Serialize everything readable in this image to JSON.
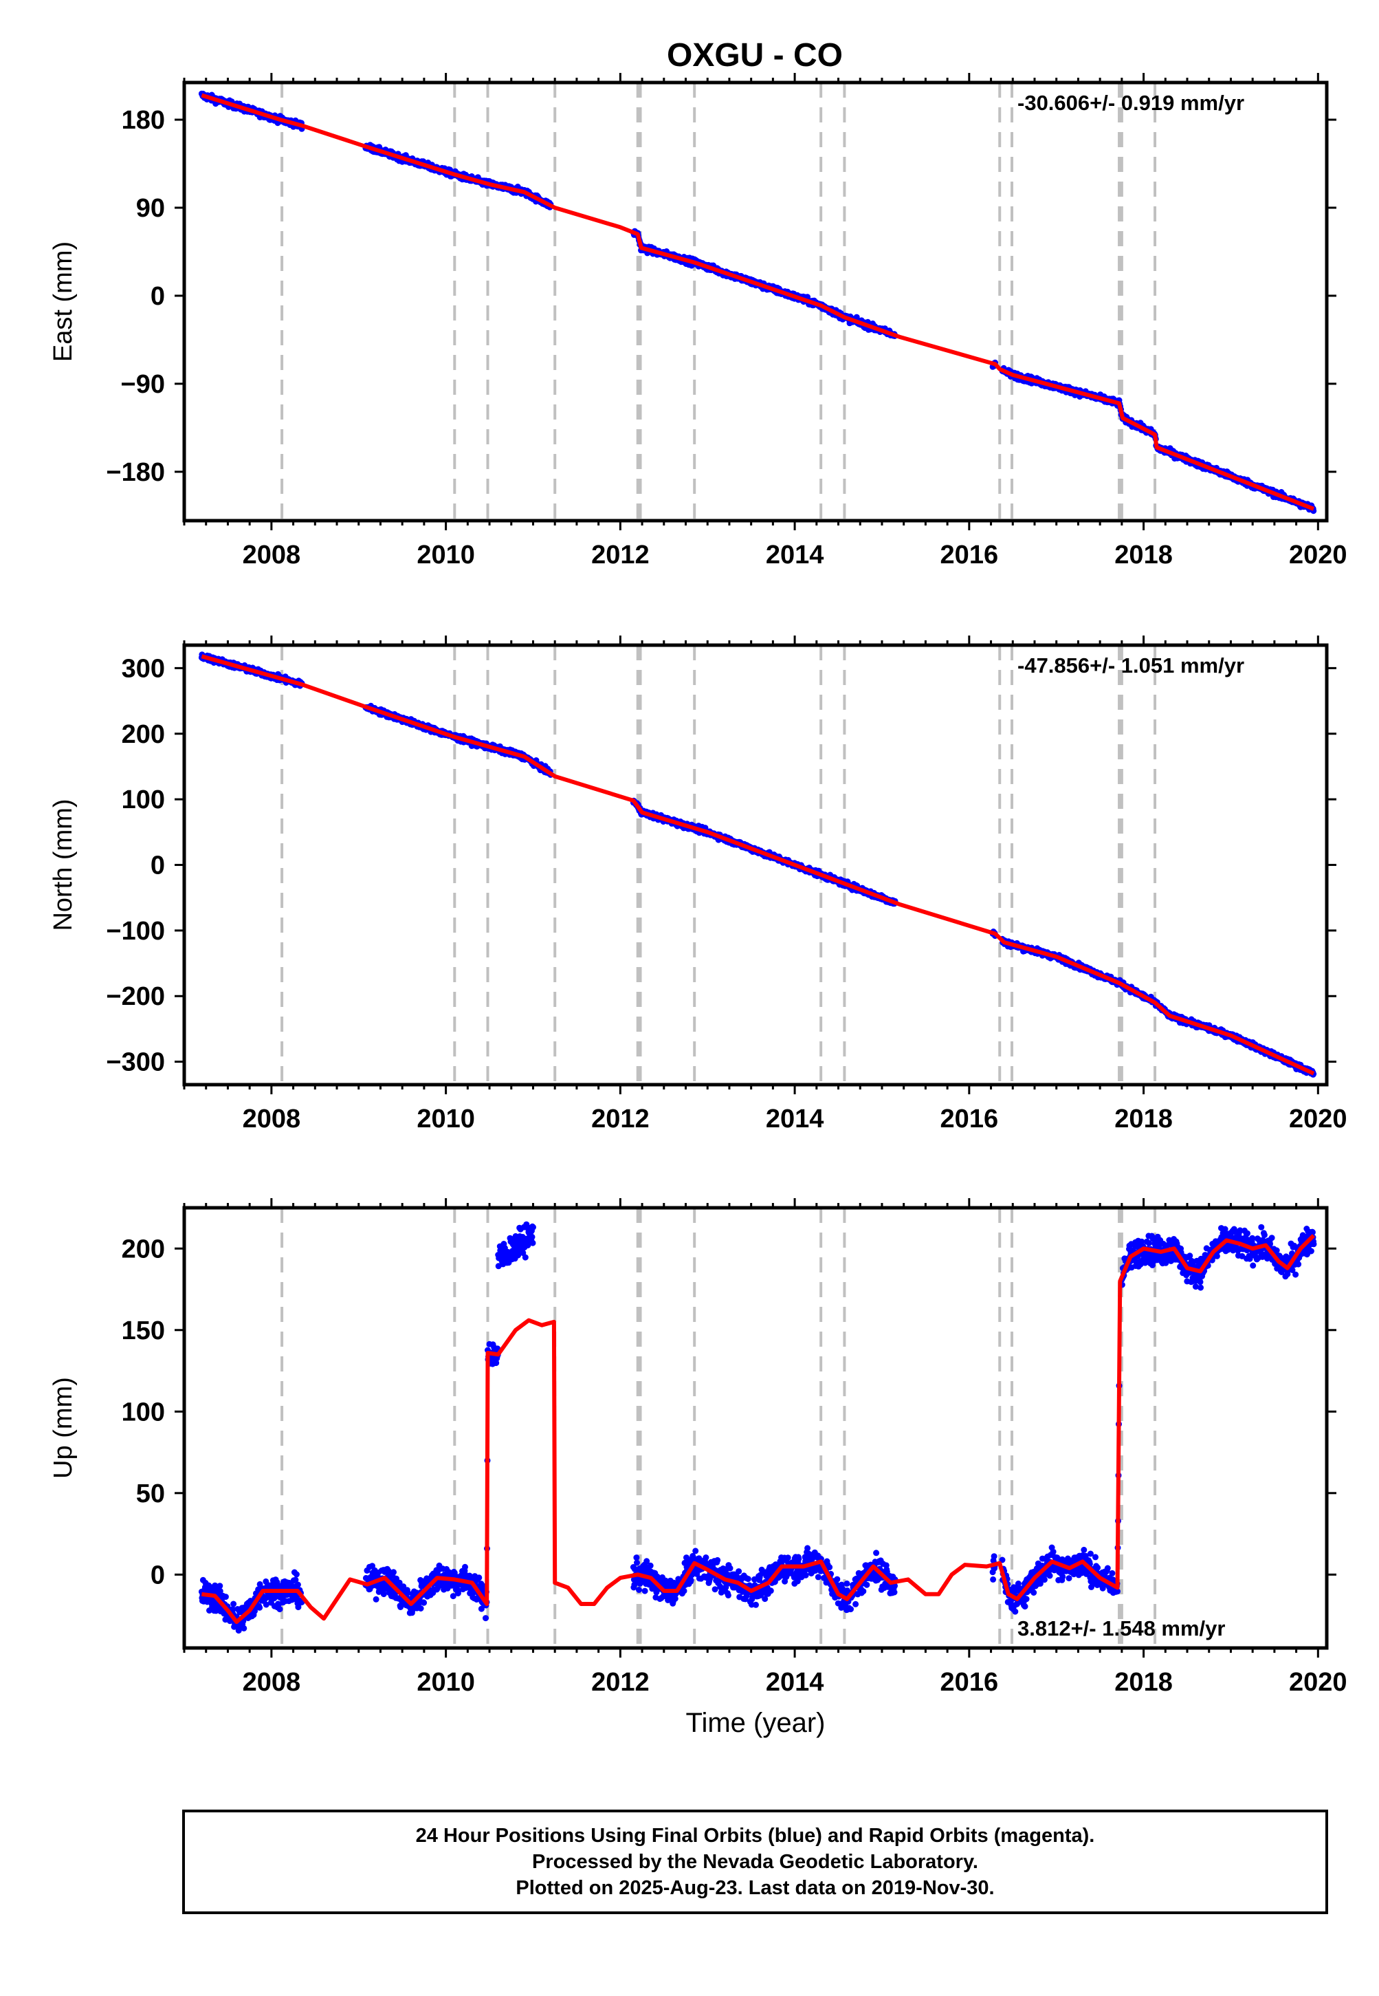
{
  "title": "OXGU - CO",
  "colors": {
    "points": "#0000ff",
    "model": "#ff0000",
    "events": "#c0c0c0"
  },
  "event_years": [
    2008.12,
    2010.1,
    2010.48,
    2011.25,
    2012.2,
    2012.23,
    2012.85,
    2014.3,
    2014.57,
    2016.35,
    2016.49,
    2017.72,
    2017.75,
    2018.13
  ],
  "chart_data": [
    {
      "type": "scatter",
      "name": "east",
      "ylabel": "East (mm)",
      "xlim": [
        2007.0,
        2020.1
      ],
      "ylim": [
        -230,
        218
      ],
      "yticks": [
        -180,
        -90,
        0,
        90,
        180
      ],
      "ytick_labels": [
        "−180",
        "−90",
        "0",
        "90",
        "180"
      ],
      "xticks": [
        2008,
        2010,
        2012,
        2014,
        2016,
        2018,
        2020
      ],
      "xtick_labels": [
        "2008",
        "2010",
        "2012",
        "2014",
        "2016",
        "2018",
        "2020"
      ],
      "rate": "-30.606+/- 0.919 mm/yr",
      "rate_position": "top-right",
      "noise": 3,
      "data_segments": [
        [
          2007.2,
          2008.35
        ],
        [
          2009.08,
          2011.2
        ],
        [
          2012.15,
          2015.15
        ],
        [
          2016.27,
          2016.3
        ],
        [
          2016.38,
          2019.95
        ]
      ],
      "model": [
        [
          2007.2,
          205
        ],
        [
          2008.1,
          180
        ],
        [
          2008.35,
          174
        ],
        [
          2009.1,
          152
        ],
        [
          2010.1,
          124
        ],
        [
          2010.5,
          114
        ],
        [
          2010.9,
          106
        ],
        [
          2011.25,
          90
        ],
        [
          2012.0,
          70
        ],
        [
          2012.2,
          63
        ],
        [
          2012.24,
          49
        ],
        [
          2012.85,
          34
        ],
        [
          2014.3,
          -10
        ],
        [
          2014.57,
          -22
        ],
        [
          2015.2,
          -42
        ],
        [
          2016.3,
          -70
        ],
        [
          2016.35,
          -75
        ],
        [
          2016.5,
          -81
        ],
        [
          2017.72,
          -110
        ],
        [
          2017.76,
          -125
        ],
        [
          2018.13,
          -142
        ],
        [
          2018.15,
          -155
        ],
        [
          2019.95,
          -218
        ]
      ]
    },
    {
      "type": "scatter",
      "name": "north",
      "ylabel": "North (mm)",
      "xlim": [
        2007.0,
        2020.1
      ],
      "ylim": [
        -335,
        335
      ],
      "yticks": [
        -300,
        -200,
        -100,
        0,
        100,
        200,
        300
      ],
      "ytick_labels": [
        "−300",
        "−200",
        "−100",
        "0",
        "100",
        "200",
        "300"
      ],
      "xticks": [
        2008,
        2010,
        2012,
        2014,
        2016,
        2018,
        2020
      ],
      "xtick_labels": [
        "2008",
        "2010",
        "2012",
        "2014",
        "2016",
        "2018",
        "2020"
      ],
      "rate": "-47.856+/- 1.051 mm/yr",
      "rate_position": "top-right",
      "noise": 4,
      "data_segments": [
        [
          2007.2,
          2008.35
        ],
        [
          2009.08,
          2011.2
        ],
        [
          2012.15,
          2015.15
        ],
        [
          2016.27,
          2016.3
        ],
        [
          2016.38,
          2019.95
        ]
      ],
      "model": [
        [
          2007.2,
          318
        ],
        [
          2008.35,
          275
        ],
        [
          2009.1,
          240
        ],
        [
          2010.1,
          195
        ],
        [
          2010.9,
          165
        ],
        [
          2011.25,
          135
        ],
        [
          2012.15,
          98
        ],
        [
          2012.25,
          80
        ],
        [
          2013.0,
          50
        ],
        [
          2014.0,
          0
        ],
        [
          2015.2,
          -60
        ],
        [
          2016.3,
          -105
        ],
        [
          2016.4,
          -118
        ],
        [
          2017.0,
          -140
        ],
        [
          2017.72,
          -180
        ],
        [
          2018.13,
          -210
        ],
        [
          2018.3,
          -230
        ],
        [
          2019.0,
          -260
        ],
        [
          2019.95,
          -318
        ]
      ]
    },
    {
      "type": "scatter",
      "name": "up",
      "ylabel": "Up (mm)",
      "xlabel": "Time (year)",
      "xlim": [
        2007.0,
        2020.1
      ],
      "ylim": [
        -45,
        225
      ],
      "yticks": [
        0,
        50,
        100,
        150,
        200
      ],
      "ytick_labels": [
        "0",
        "50",
        "100",
        "150",
        "200"
      ],
      "xticks": [
        2008,
        2010,
        2012,
        2014,
        2016,
        2018,
        2020
      ],
      "xtick_labels": [
        "2008",
        "2010",
        "2012",
        "2014",
        "2016",
        "2018",
        "2020"
      ],
      "rate": "3.812+/- 1.548 mm/yr",
      "rate_position": "bottom-right",
      "noise": 8,
      "data_segments": [
        [
          2007.2,
          2008.35
        ],
        [
          2009.08,
          2010.6
        ],
        [
          2010.6,
          2011.0
        ],
        [
          2012.15,
          2015.15
        ],
        [
          2016.27,
          2016.3
        ],
        [
          2016.38,
          2017.72
        ],
        [
          2017.75,
          2019.95
        ]
      ],
      "point_offsets": [
        [
          2010.6,
          2011.0,
          193
        ]
      ],
      "model": [
        [
          2007.2,
          -12
        ],
        [
          2007.35,
          -13
        ],
        [
          2007.5,
          -22
        ],
        [
          2007.6,
          -29
        ],
        [
          2007.75,
          -22
        ],
        [
          2007.9,
          -10
        ],
        [
          2008.1,
          -10
        ],
        [
          2008.3,
          -10
        ],
        [
          2008.45,
          -20
        ],
        [
          2008.6,
          -27
        ],
        [
          2008.75,
          -15
        ],
        [
          2008.9,
          -3
        ],
        [
          2009.1,
          -6
        ],
        [
          2009.3,
          -2
        ],
        [
          2009.45,
          -10
        ],
        [
          2009.6,
          -18
        ],
        [
          2009.75,
          -10
        ],
        [
          2009.9,
          -2
        ],
        [
          2010.1,
          -3
        ],
        [
          2010.3,
          -5
        ],
        [
          2010.47,
          -18
        ],
        [
          2010.48,
          136
        ],
        [
          2010.6,
          135
        ],
        [
          2010.8,
          150
        ],
        [
          2010.95,
          156
        ],
        [
          2011.1,
          153
        ],
        [
          2011.24,
          155
        ],
        [
          2011.25,
          -5
        ],
        [
          2011.4,
          -8
        ],
        [
          2011.55,
          -18
        ],
        [
          2011.7,
          -18
        ],
        [
          2011.85,
          -8
        ],
        [
          2012.0,
          -2
        ],
        [
          2012.2,
          0
        ],
        [
          2012.35,
          -2
        ],
        [
          2012.5,
          -10
        ],
        [
          2012.65,
          -10
        ],
        [
          2012.85,
          7
        ],
        [
          2013.0,
          3
        ],
        [
          2013.2,
          -3
        ],
        [
          2013.35,
          -5
        ],
        [
          2013.5,
          -10
        ],
        [
          2013.7,
          -5
        ],
        [
          2013.85,
          5
        ],
        [
          2014.1,
          5
        ],
        [
          2014.3,
          8
        ],
        [
          2014.5,
          -12
        ],
        [
          2014.6,
          -15
        ],
        [
          2014.75,
          -5
        ],
        [
          2014.9,
          5
        ],
        [
          2015.1,
          -5
        ],
        [
          2015.3,
          -3
        ],
        [
          2015.5,
          -12
        ],
        [
          2015.65,
          -12
        ],
        [
          2015.8,
          0
        ],
        [
          2015.95,
          6
        ],
        [
          2016.2,
          5
        ],
        [
          2016.35,
          7
        ],
        [
          2016.45,
          -12
        ],
        [
          2016.55,
          -15
        ],
        [
          2016.75,
          -2
        ],
        [
          2016.95,
          8
        ],
        [
          2017.15,
          4
        ],
        [
          2017.3,
          8
        ],
        [
          2017.5,
          -2
        ],
        [
          2017.7,
          -8
        ],
        [
          2017.73,
          180
        ],
        [
          2017.85,
          195
        ],
        [
          2018.0,
          200
        ],
        [
          2018.2,
          198
        ],
        [
          2018.35,
          200
        ],
        [
          2018.5,
          188
        ],
        [
          2018.65,
          186
        ],
        [
          2018.8,
          198
        ],
        [
          2018.95,
          205
        ],
        [
          2019.1,
          203
        ],
        [
          2019.25,
          200
        ],
        [
          2019.4,
          202
        ],
        [
          2019.55,
          192
        ],
        [
          2019.65,
          188
        ],
        [
          2019.8,
          200
        ],
        [
          2019.95,
          208
        ]
      ]
    }
  ],
  "caption": {
    "line1": "24 Hour Positions Using Final Orbits (blue) and Rapid Orbits (magenta).",
    "line2": "Processed by the Nevada Geodetic Laboratory.",
    "line3": "Plotted on 2025-Aug-23. Last data on 2019-Nov-30."
  }
}
